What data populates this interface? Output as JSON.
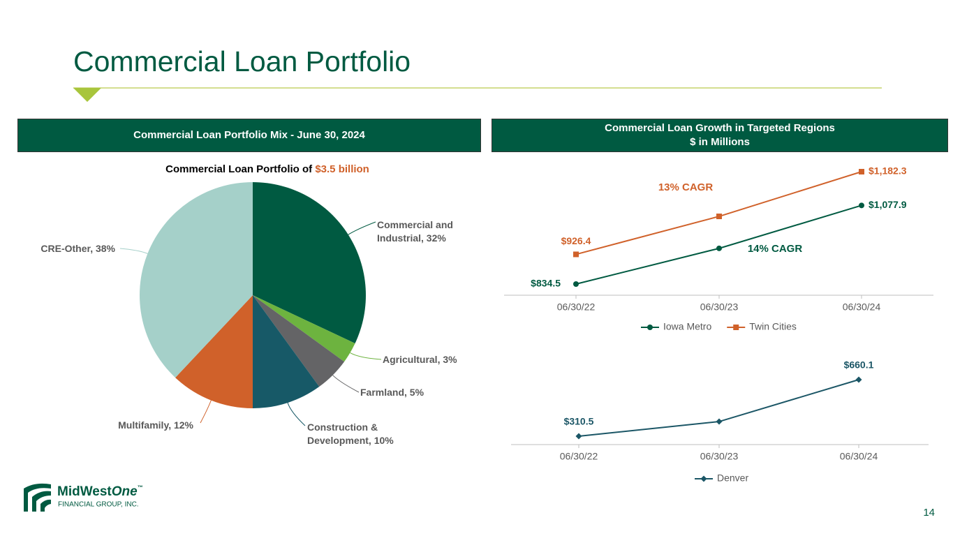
{
  "title": "Commercial Loan Portfolio",
  "left_header": "Commercial Loan Portfolio Mix - June 30, 2024",
  "right_header": [
    "Commercial Loan Growth in Targeted Regions",
    "$ in Millions"
  ],
  "logo": {
    "name": "MidWest",
    "name_italic": "One",
    "tm": "™",
    "sub": "FINANCIAL GROUP, INC."
  },
  "page_number": "14",
  "chart_data": [
    {
      "type": "pie",
      "title": "Commercial Loan Portfolio of ",
      "title_highlight": "$3.5 billion",
      "title_highlight_color": "#d0612a",
      "values": [
        32,
        3,
        5,
        10,
        12,
        38
      ],
      "value_labels": [
        "Commercial and Industrial, 32%",
        "Agricultural, 3%",
        "Farmland, 5%",
        "Construction & Development, 10%",
        "Multifamily, 12%",
        "CRE-Other, 38%"
      ],
      "colors": [
        "#005a41",
        "#6db33f",
        "#646466",
        "#175967",
        "#d0612a",
        "#a5d0c9"
      ]
    },
    {
      "type": "line",
      "categories": [
        "06/30/22",
        "06/30/23",
        "06/30/24"
      ],
      "series": [
        {
          "name": "Iowa Metro",
          "color": "#005a41",
          "marker": "circle",
          "values": [
            834.5,
            945,
            1077.9
          ],
          "value_labels": [
            "$834.5",
            null,
            "$1,077.9"
          ]
        },
        {
          "name": "Twin Cities",
          "color": "#d0612a",
          "marker": "square",
          "values": [
            926.4,
            1044,
            1182.3
          ],
          "value_labels": [
            "$926.4",
            null,
            "$1,182.3"
          ]
        }
      ],
      "annotations": [
        {
          "text": "13% CAGR",
          "color": "#d0612a"
        },
        {
          "text": "14% CAGR",
          "color": "#005a41"
        }
      ]
    },
    {
      "type": "line",
      "categories": [
        "06/30/22",
        "06/30/23",
        "06/30/24"
      ],
      "series": [
        {
          "name": "Denver",
          "color": "#1b5666",
          "marker": "diamond",
          "values": [
            310.5,
            401,
            660.1
          ],
          "value_labels": [
            "$310.5",
            null,
            "$660.1"
          ]
        }
      ]
    }
  ]
}
